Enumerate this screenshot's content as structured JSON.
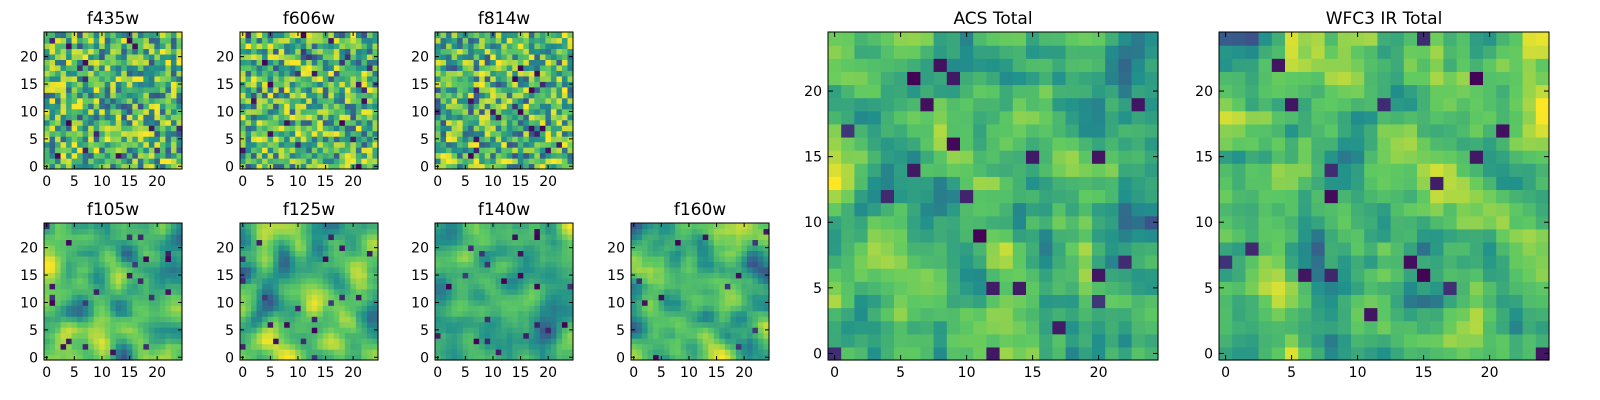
{
  "chart_data": [
    {
      "type": "heatmap",
      "title": "f435w",
      "xlim": [
        0,
        24
      ],
      "ylim": [
        0,
        24
      ],
      "xticks": [
        0,
        5,
        10,
        15,
        20
      ],
      "yticks": [
        0,
        5,
        10,
        15,
        20
      ],
      "grid_size": 25,
      "colormap": "viridis",
      "noise_scale": "fine"
    },
    {
      "type": "heatmap",
      "title": "f606w",
      "xlim": [
        0,
        24
      ],
      "ylim": [
        0,
        24
      ],
      "xticks": [
        0,
        5,
        10,
        15,
        20
      ],
      "yticks": [
        0,
        5,
        10,
        15,
        20
      ],
      "grid_size": 25,
      "colormap": "viridis",
      "noise_scale": "fine"
    },
    {
      "type": "heatmap",
      "title": "f814w",
      "xlim": [
        0,
        24
      ],
      "ylim": [
        0,
        24
      ],
      "xticks": [
        0,
        5,
        10,
        15,
        20
      ],
      "yticks": [
        0,
        5,
        10,
        15,
        20
      ],
      "grid_size": 25,
      "colormap": "viridis",
      "noise_scale": "fine"
    },
    {
      "type": "heatmap",
      "title": "f105w",
      "xlim": [
        0,
        24
      ],
      "ylim": [
        0,
        24
      ],
      "xticks": [
        0,
        5,
        10,
        15,
        20
      ],
      "yticks": [
        0,
        5,
        10,
        15,
        20
      ],
      "grid_size": 25,
      "colormap": "viridis",
      "noise_scale": "smooth"
    },
    {
      "type": "heatmap",
      "title": "f125w",
      "xlim": [
        0,
        24
      ],
      "ylim": [
        0,
        24
      ],
      "xticks": [
        0,
        5,
        10,
        15,
        20
      ],
      "yticks": [
        0,
        5,
        10,
        15,
        20
      ],
      "grid_size": 25,
      "colormap": "viridis",
      "noise_scale": "smooth"
    },
    {
      "type": "heatmap",
      "title": "f140w",
      "xlim": [
        0,
        24
      ],
      "ylim": [
        0,
        24
      ],
      "xticks": [
        0,
        5,
        10,
        15,
        20
      ],
      "yticks": [
        0,
        5,
        10,
        15,
        20
      ],
      "grid_size": 25,
      "colormap": "viridis",
      "noise_scale": "smooth"
    },
    {
      "type": "heatmap",
      "title": "f160w",
      "xlim": [
        0,
        24
      ],
      "ylim": [
        0,
        24
      ],
      "xticks": [
        0,
        5,
        10,
        15,
        20
      ],
      "yticks": [
        0,
        5,
        10,
        15,
        20
      ],
      "grid_size": 25,
      "colormap": "viridis",
      "noise_scale": "smooth"
    },
    {
      "type": "heatmap",
      "title": "ACS Total",
      "xlim": [
        0,
        24
      ],
      "ylim": [
        0,
        24
      ],
      "xticks": [
        0,
        5,
        10,
        15,
        20
      ],
      "yticks": [
        0,
        5,
        10,
        15,
        20
      ],
      "grid_size": 25,
      "colormap": "viridis",
      "noise_scale": "medium"
    },
    {
      "type": "heatmap",
      "title": "WFC3 IR Total",
      "xlim": [
        0,
        24
      ],
      "ylim": [
        0,
        24
      ],
      "xticks": [
        0,
        5,
        10,
        15,
        20
      ],
      "yticks": [
        0,
        5,
        10,
        15,
        20
      ],
      "grid_size": 25,
      "colormap": "viridis",
      "noise_scale": "medium"
    }
  ],
  "colors": {
    "viridis": [
      "#440154",
      "#3b528b",
      "#21918c",
      "#5ec962",
      "#fde725"
    ],
    "axis": "#000000",
    "background": "#ffffff"
  }
}
